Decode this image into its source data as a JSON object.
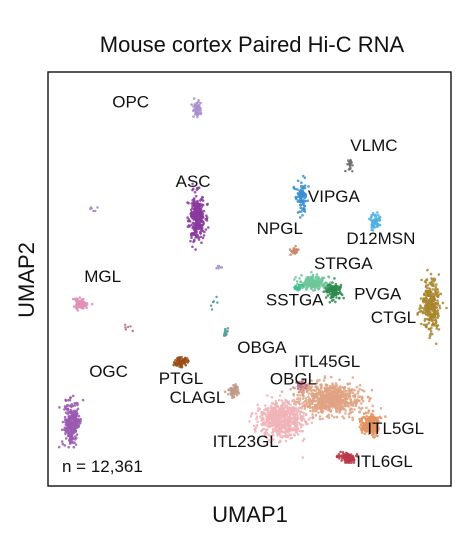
{
  "chart_data": {
    "type": "scatter",
    "title": "Mouse cortex Paired Hi-C RNA",
    "xlabel": "UMAP1",
    "ylabel": "UMAP2",
    "annotation": "n = 12,361",
    "n_cells": 12361,
    "legend": "none",
    "grid": false,
    "clusters": [
      {
        "name": "OPC",
        "color": "#a98fd0",
        "center": [
          0.37,
          0.91
        ],
        "label": "OPC"
      },
      {
        "name": "VLMC",
        "color": "#6f6f6f",
        "center": [
          0.75,
          0.78
        ],
        "label": "VLMC"
      },
      {
        "name": "VIPGA",
        "color": "#3a8fd0",
        "center": [
          0.63,
          0.7
        ],
        "label": "VIPGA"
      },
      {
        "name": "ASC",
        "color": "#8a3a9e",
        "center": [
          0.37,
          0.65
        ],
        "label": "ASC"
      },
      {
        "name": "NPGL",
        "color": "#c7896a",
        "center": [
          0.61,
          0.57
        ],
        "label": "NPGL"
      },
      {
        "name": "D12MSN",
        "color": "#4fb0e0",
        "center": [
          0.81,
          0.64
        ],
        "label": "D12MSN"
      },
      {
        "name": "STRGA",
        "color": "#6ec79b",
        "center": [
          0.66,
          0.49
        ],
        "label": "STRGA"
      },
      {
        "name": "PVGA",
        "color": "#2e8a4e",
        "center": [
          0.71,
          0.47
        ],
        "label": "PVGA"
      },
      {
        "name": "SSTGA",
        "color": "#3fbf8f",
        "center": [
          0.62,
          0.48
        ],
        "label": "SSTGA"
      },
      {
        "name": "CTGL",
        "color": "#a8862e",
        "center": [
          0.95,
          0.44
        ],
        "label": "CTGL"
      },
      {
        "name": "MGL",
        "color": "#e090b8",
        "center": [
          0.08,
          0.44
        ],
        "label": "MGL"
      },
      {
        "name": "OBGA",
        "color": "#5a9c96",
        "center": [
          0.44,
          0.37
        ],
        "label": "OBGA"
      },
      {
        "name": "PTGL",
        "color": "#9a4d1a",
        "center": [
          0.33,
          0.3
        ],
        "label": "PTGL"
      },
      {
        "name": "OBGL",
        "color": "#c07a86",
        "center": [
          0.63,
          0.24
        ],
        "label": "OBGL"
      },
      {
        "name": "ITL45GL",
        "color": "#e0a384",
        "center": [
          0.7,
          0.21
        ],
        "label": "ITL45GL"
      },
      {
        "name": "CLAGL",
        "color": "#c09a8a",
        "center": [
          0.46,
          0.23
        ],
        "label": "CLAGL"
      },
      {
        "name": "ITL23GL",
        "color": "#f0b4b8",
        "center": [
          0.58,
          0.16
        ],
        "label": "ITL23GL"
      },
      {
        "name": "ITL5GL",
        "color": "#e4925e",
        "center": [
          0.8,
          0.15
        ],
        "label": "ITL5GL"
      },
      {
        "name": "ITL6GL",
        "color": "#b83a4a",
        "center": [
          0.74,
          0.07
        ],
        "label": "ITL6GL"
      },
      {
        "name": "OGC",
        "color": "#9a5ab0",
        "center": [
          0.06,
          0.15
        ],
        "label": "OGC"
      }
    ],
    "xlim": [
      0,
      1
    ],
    "ylim": [
      0,
      1
    ],
    "axis_ticks": "none"
  }
}
